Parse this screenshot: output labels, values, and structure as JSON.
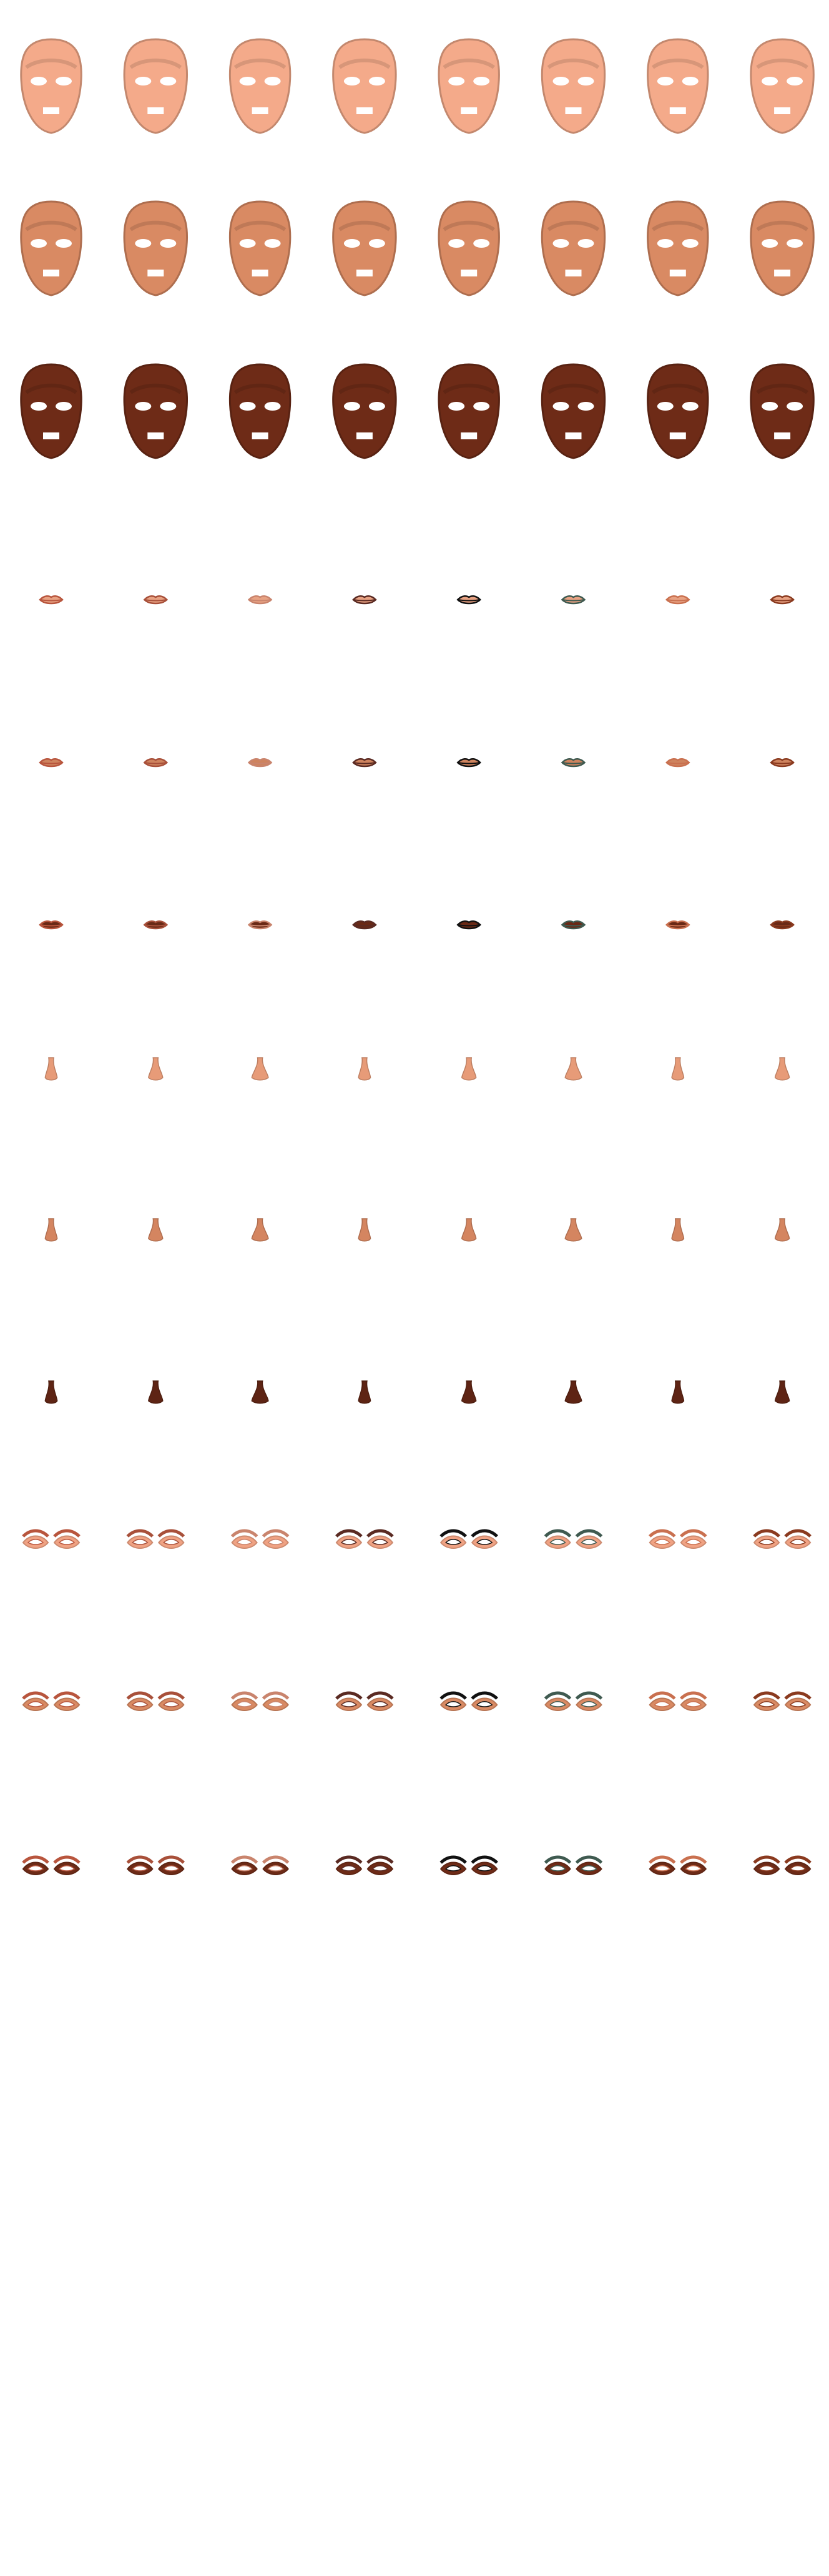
{
  "sheet": {
    "columns": 8,
    "rows": [
      {
        "kind": "face",
        "color": "#f4aa8a"
      },
      {
        "kind": "face",
        "color": "#d98a63"
      },
      {
        "kind": "face",
        "color": "#6e2b17"
      },
      {
        "kind": "lips",
        "color": "#f4aa8a"
      },
      {
        "kind": "lips",
        "color": "#d98a63"
      },
      {
        "kind": "lips",
        "color": "#6e2b17"
      },
      {
        "kind": "nose",
        "color": "#e79b78"
      },
      {
        "kind": "nose",
        "color": "#d48560"
      },
      {
        "kind": "nose",
        "color": "#5e2414"
      },
      {
        "kind": "eyes",
        "color": "#f0a283"
      },
      {
        "kind": "eyes",
        "color": "#d98a63"
      },
      {
        "kind": "eyes",
        "color": "#6e2b17"
      }
    ],
    "accents": [
      "#b8553d",
      "#a8503a",
      "#c9846d",
      "#5a2a22",
      "#111111",
      "#3f5a50",
      "#c9704f",
      "#8a3a1f"
    ]
  }
}
